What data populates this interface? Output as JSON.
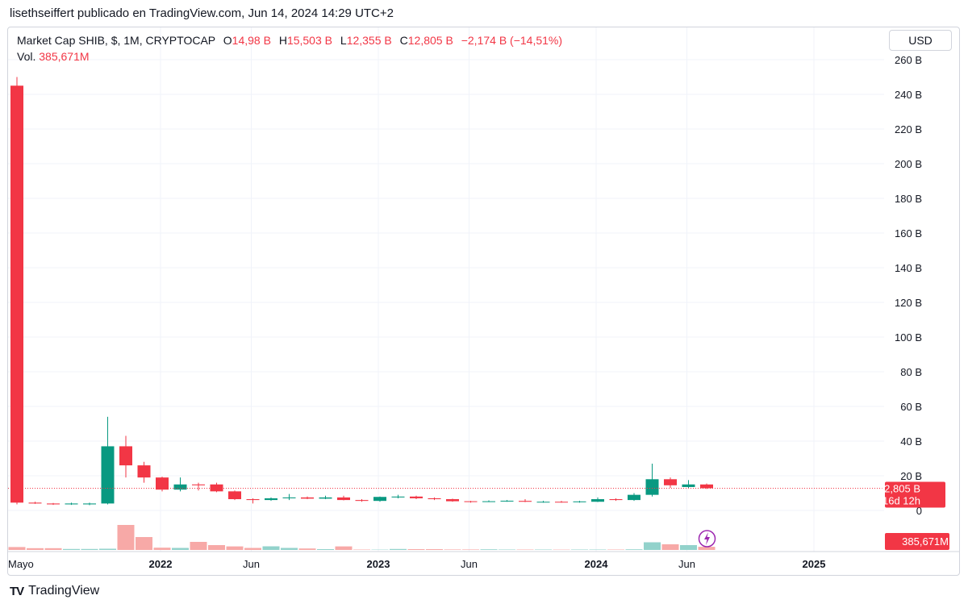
{
  "header": {
    "publisher": "lisethseiffert publicado en TradingView.com, Jun 14, 2024 14:29 UTC+2"
  },
  "legend": {
    "symbol": "Market Cap SHIB, $, 1M, CRYPTOCAP",
    "o_label": "O",
    "o_value": "14,98 B",
    "h_label": "H",
    "h_value": "15,503 B",
    "l_label": "L",
    "l_value": "12,355 B",
    "c_label": "C",
    "c_value": "12,805 B",
    "change": "−2,174 B (−14,51%)",
    "vol_label": "Vol.",
    "vol_value": "385,671M"
  },
  "currency_button": "USD",
  "footer": {
    "brand": "TradingView",
    "logo": "TV"
  },
  "colors": {
    "up": "#089981",
    "down": "#f23645",
    "up_vol": "#92d2cb",
    "down_vol": "#f7a9a7",
    "grid": "#f0f3fa"
  },
  "chart_data": {
    "type": "candlestick",
    "y_axis": {
      "ticks": [
        "260 B",
        "240 B",
        "220 B",
        "200 B",
        "180 B",
        "160 B",
        "140 B",
        "120 B",
        "100 B",
        "80 B",
        "60 B",
        "40 B",
        "20 B",
        "0"
      ],
      "tick_values": [
        260,
        240,
        220,
        200,
        180,
        160,
        140,
        120,
        100,
        80,
        60,
        40,
        20,
        0
      ],
      "range": [
        0,
        260
      ],
      "unit": "B"
    },
    "x_axis": {
      "labels": [
        {
          "text": "Mayo",
          "month": 0,
          "bold": false
        },
        {
          "text": "2022",
          "month": 8,
          "bold": true
        },
        {
          "text": "Jun",
          "month": 13,
          "bold": false
        },
        {
          "text": "2023",
          "month": 20,
          "bold": true
        },
        {
          "text": "Jun",
          "month": 25,
          "bold": false
        },
        {
          "text": "2024",
          "month": 32,
          "bold": true
        },
        {
          "text": "Jun",
          "month": 37,
          "bold": false
        },
        {
          "text": "2025",
          "month": 44,
          "bold": true
        }
      ]
    },
    "last_price": {
      "value": 12.805,
      "label": "12,805 B",
      "countdown": "16d 12h"
    },
    "last_volume": {
      "label": "385,671M"
    },
    "candles": [
      {
        "o": 245,
        "h": 250,
        "l": 3.5,
        "c": 4.5,
        "v": 0.36
      },
      {
        "o": 4.5,
        "h": 5,
        "l": 3.8,
        "c": 4,
        "v": 0.22
      },
      {
        "o": 4,
        "h": 4.3,
        "l": 3.2,
        "c": 3.5,
        "v": 0.22
      },
      {
        "o": 3.5,
        "h": 4.5,
        "l": 3.2,
        "c": 4,
        "v": 0.12
      },
      {
        "o": 3.5,
        "h": 4.5,
        "l": 3,
        "c": 4,
        "v": 0.12
      },
      {
        "o": 4,
        "h": 54,
        "l": 3.5,
        "c": 37,
        "v": 0.15
      },
      {
        "o": 37,
        "h": 43,
        "l": 19,
        "c": 26,
        "v": 3.1
      },
      {
        "o": 26,
        "h": 28,
        "l": 16,
        "c": 19,
        "v": 1.6
      },
      {
        "o": 19,
        "h": 19.5,
        "l": 11,
        "c": 12,
        "v": 0.28
      },
      {
        "o": 12,
        "h": 19,
        "l": 11,
        "c": 15,
        "v": 0.25
      },
      {
        "o": 15,
        "h": 16,
        "l": 11.5,
        "c": 14.5,
        "v": 1.0
      },
      {
        "o": 15,
        "h": 16,
        "l": 10.5,
        "c": 11,
        "v": 0.6
      },
      {
        "o": 11,
        "h": 11.5,
        "l": 6,
        "c": 6.5,
        "v": 0.44
      },
      {
        "o": 6.5,
        "h": 7,
        "l": 4,
        "c": 6,
        "v": 0.25
      },
      {
        "o": 6,
        "h": 7.5,
        "l": 5.5,
        "c": 7,
        "v": 0.45
      },
      {
        "o": 7,
        "h": 9.5,
        "l": 6,
        "c": 7.5,
        "v": 0.25
      },
      {
        "o": 7.5,
        "h": 8,
        "l": 6.5,
        "c": 6.8,
        "v": 0.18
      },
      {
        "o": 6.8,
        "h": 8.5,
        "l": 6.5,
        "c": 7.5,
        "v": 0.1
      },
      {
        "o": 7.5,
        "h": 8.5,
        "l": 5.8,
        "c": 6,
        "v": 0.44
      },
      {
        "o": 6,
        "h": 6.5,
        "l": 5,
        "c": 5.5,
        "v": 0.05
      },
      {
        "o": 5.5,
        "h": 8,
        "l": 5,
        "c": 7.8,
        "v": 0.04
      },
      {
        "o": 7.5,
        "h": 9,
        "l": 7,
        "c": 8,
        "v": 0.12
      },
      {
        "o": 8,
        "h": 8.5,
        "l": 6.5,
        "c": 7,
        "v": 0.1
      },
      {
        "o": 7,
        "h": 7.5,
        "l": 6,
        "c": 6.5,
        "v": 0.1
      },
      {
        "o": 6.5,
        "h": 6.8,
        "l": 5,
        "c": 5.3,
        "v": 0.06
      },
      {
        "o": 5.3,
        "h": 5.5,
        "l": 4.5,
        "c": 5,
        "v": 0.06
      },
      {
        "o": 5,
        "h": 5.8,
        "l": 4.8,
        "c": 5.3,
        "v": 0.08
      },
      {
        "o": 5.5,
        "h": 6,
        "l": 5,
        "c": 5.6,
        "v": 0.05
      },
      {
        "o": 5.5,
        "h": 6.5,
        "l": 4.8,
        "c": 5,
        "v": 0.05
      },
      {
        "o": 5,
        "h": 5.5,
        "l": 4.5,
        "c": 5,
        "v": 0.05
      },
      {
        "o": 5,
        "h": 5.5,
        "l": 4.5,
        "c": 4.8,
        "v": 0.04
      },
      {
        "o": 4.8,
        "h": 5.5,
        "l": 4.5,
        "c": 5.2,
        "v": 0.05
      },
      {
        "o": 5,
        "h": 7.5,
        "l": 4.8,
        "c": 6.5,
        "v": 0.05
      },
      {
        "o": 6.5,
        "h": 7,
        "l": 5.5,
        "c": 6,
        "v": 0.05
      },
      {
        "o": 6,
        "h": 10,
        "l": 5.5,
        "c": 9,
        "v": 0.08
      },
      {
        "o": 9,
        "h": 27,
        "l": 8,
        "c": 18,
        "v": 0.95
      },
      {
        "o": 18,
        "h": 19,
        "l": 13,
        "c": 14.5,
        "v": 0.7
      },
      {
        "o": 13.5,
        "h": 17.5,
        "l": 13,
        "c": 15,
        "v": 0.6
      },
      {
        "o": 14.98,
        "h": 15.503,
        "l": 12.355,
        "c": 12.805,
        "v": 0.39
      }
    ]
  }
}
